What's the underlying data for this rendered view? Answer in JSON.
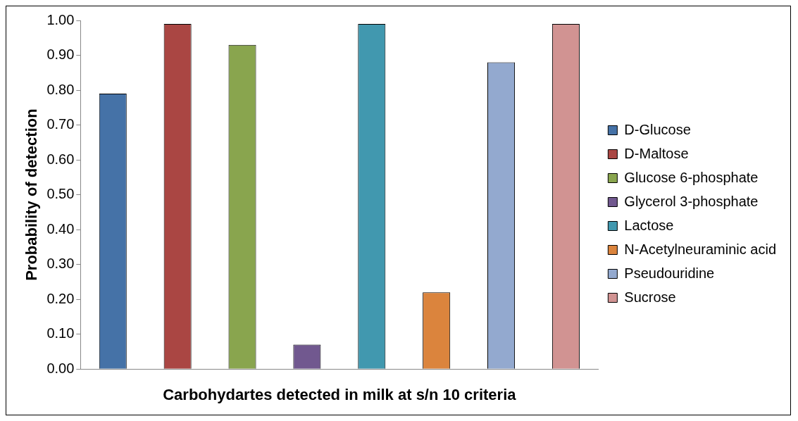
{
  "chart_data": {
    "type": "bar",
    "xlabel": "Carbohydartes detected in milk at s/n 10 criteria",
    "ylabel": "Probability of detection",
    "categories": [
      null,
      null,
      null,
      null,
      null,
      null,
      null,
      null
    ],
    "series": [
      {
        "name": "D-Glucose",
        "color": "#4572a7",
        "values": [
          0.79,
          null,
          null,
          null,
          null,
          null,
          null,
          null
        ]
      },
      {
        "name": "D-Maltose",
        "color": "#aa4643",
        "values": [
          null,
          0.99,
          null,
          null,
          null,
          null,
          null,
          null
        ]
      },
      {
        "name": "Glucose 6-phosphate",
        "color": "#89a54e",
        "values": [
          null,
          null,
          0.93,
          null,
          null,
          null,
          null,
          null
        ]
      },
      {
        "name": "Glycerol 3-phosphate",
        "color": "#71588f",
        "values": [
          null,
          null,
          null,
          0.07,
          null,
          null,
          null,
          null
        ]
      },
      {
        "name": "Lactose",
        "color": "#4198af",
        "values": [
          null,
          null,
          null,
          null,
          0.99,
          null,
          null,
          null
        ]
      },
      {
        "name": "N-Acetylneuraminic acid",
        "color": "#db843d",
        "values": [
          null,
          null,
          null,
          null,
          null,
          0.22,
          null,
          null
        ]
      },
      {
        "name": "Pseudouridine",
        "color": "#93a9cf",
        "values": [
          null,
          null,
          null,
          null,
          null,
          null,
          0.88,
          null
        ]
      },
      {
        "name": "Sucrose",
        "color": "#d19392",
        "values": [
          null,
          null,
          null,
          null,
          null,
          null,
          null,
          0.99
        ]
      }
    ],
    "ylim": [
      0,
      1
    ],
    "yticks": [
      {
        "value": 0,
        "label": "0.00"
      },
      {
        "value": 0.1,
        "label": "0.10"
      },
      {
        "value": 0.2,
        "label": "0.20"
      },
      {
        "value": 0.3,
        "label": "0.30"
      },
      {
        "value": 0.4,
        "label": "0.40"
      },
      {
        "value": 0.5,
        "label": "0.50"
      },
      {
        "value": 0.6,
        "label": "0.60"
      },
      {
        "value": 0.7,
        "label": "0.70"
      },
      {
        "value": 0.8,
        "label": "0.80"
      },
      {
        "value": 0.9,
        "label": "0.90"
      },
      {
        "value": 1,
        "label": "1.00"
      }
    ],
    "grid": false,
    "legend": "right"
  }
}
